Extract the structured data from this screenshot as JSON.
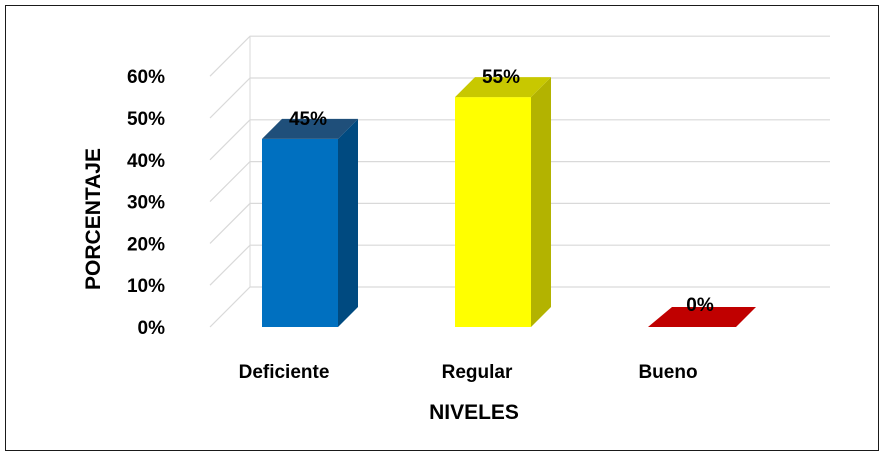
{
  "chart_data": {
    "type": "bar",
    "style": "3d",
    "categories": [
      "Deficiente",
      "Regular",
      "Bueno"
    ],
    "values": [
      45,
      55,
      0
    ],
    "value_labels": [
      "45%",
      "55%",
      "0%"
    ],
    "colors": [
      "#0070c0",
      "#ffff00",
      "#c00000"
    ],
    "side_colors": [
      "#004a80",
      "#b3b300",
      "#8a0000"
    ],
    "top_colors": [
      "#1f4f7a",
      "#c8c800",
      "#9a0000"
    ],
    "xlabel": "NIVELES",
    "ylabel": "PORCENTAJE",
    "ylim": [
      0,
      60
    ],
    "yticks": [
      0,
      10,
      20,
      30,
      40,
      50,
      60
    ],
    "ytick_labels": [
      "0%",
      "10%",
      "20%",
      "30%",
      "40%",
      "50%",
      "60%"
    ],
    "grid": true,
    "legend": false
  }
}
